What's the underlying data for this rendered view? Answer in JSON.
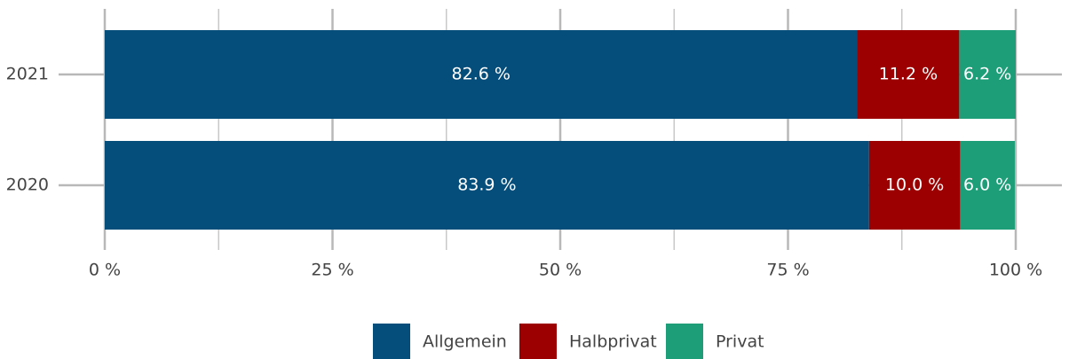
{
  "chart_data": {
    "type": "stacked-barh",
    "categories": [
      "2021",
      "2020"
    ],
    "series": [
      {
        "name": "Allgemein",
        "color": "#054d7a",
        "values": [
          82.6,
          83.9
        ],
        "value_labels": [
          "82.6 %",
          "83.9 %"
        ]
      },
      {
        "name": "Halbprivat",
        "color": "#9c0000",
        "values": [
          11.2,
          10.0
        ],
        "value_labels": [
          "11.2 %",
          "10.0 %"
        ]
      },
      {
        "name": "Privat",
        "color": "#1e9e78",
        "values": [
          6.2,
          6.0
        ],
        "value_labels": [
          "6.2 %",
          "6.0 %"
        ]
      }
    ],
    "xlim": [
      0,
      100
    ],
    "xticks": [
      {
        "value": 0,
        "label": "0 %"
      },
      {
        "value": 25,
        "label": "25 %"
      },
      {
        "value": 50,
        "label": "50 %"
      },
      {
        "value": 75,
        "label": "75 %"
      },
      {
        "value": 100,
        "label": "100 %"
      }
    ],
    "xminor": [
      12.5,
      37.5,
      62.5,
      87.5
    ],
    "grid": true,
    "legend": "bottom"
  }
}
